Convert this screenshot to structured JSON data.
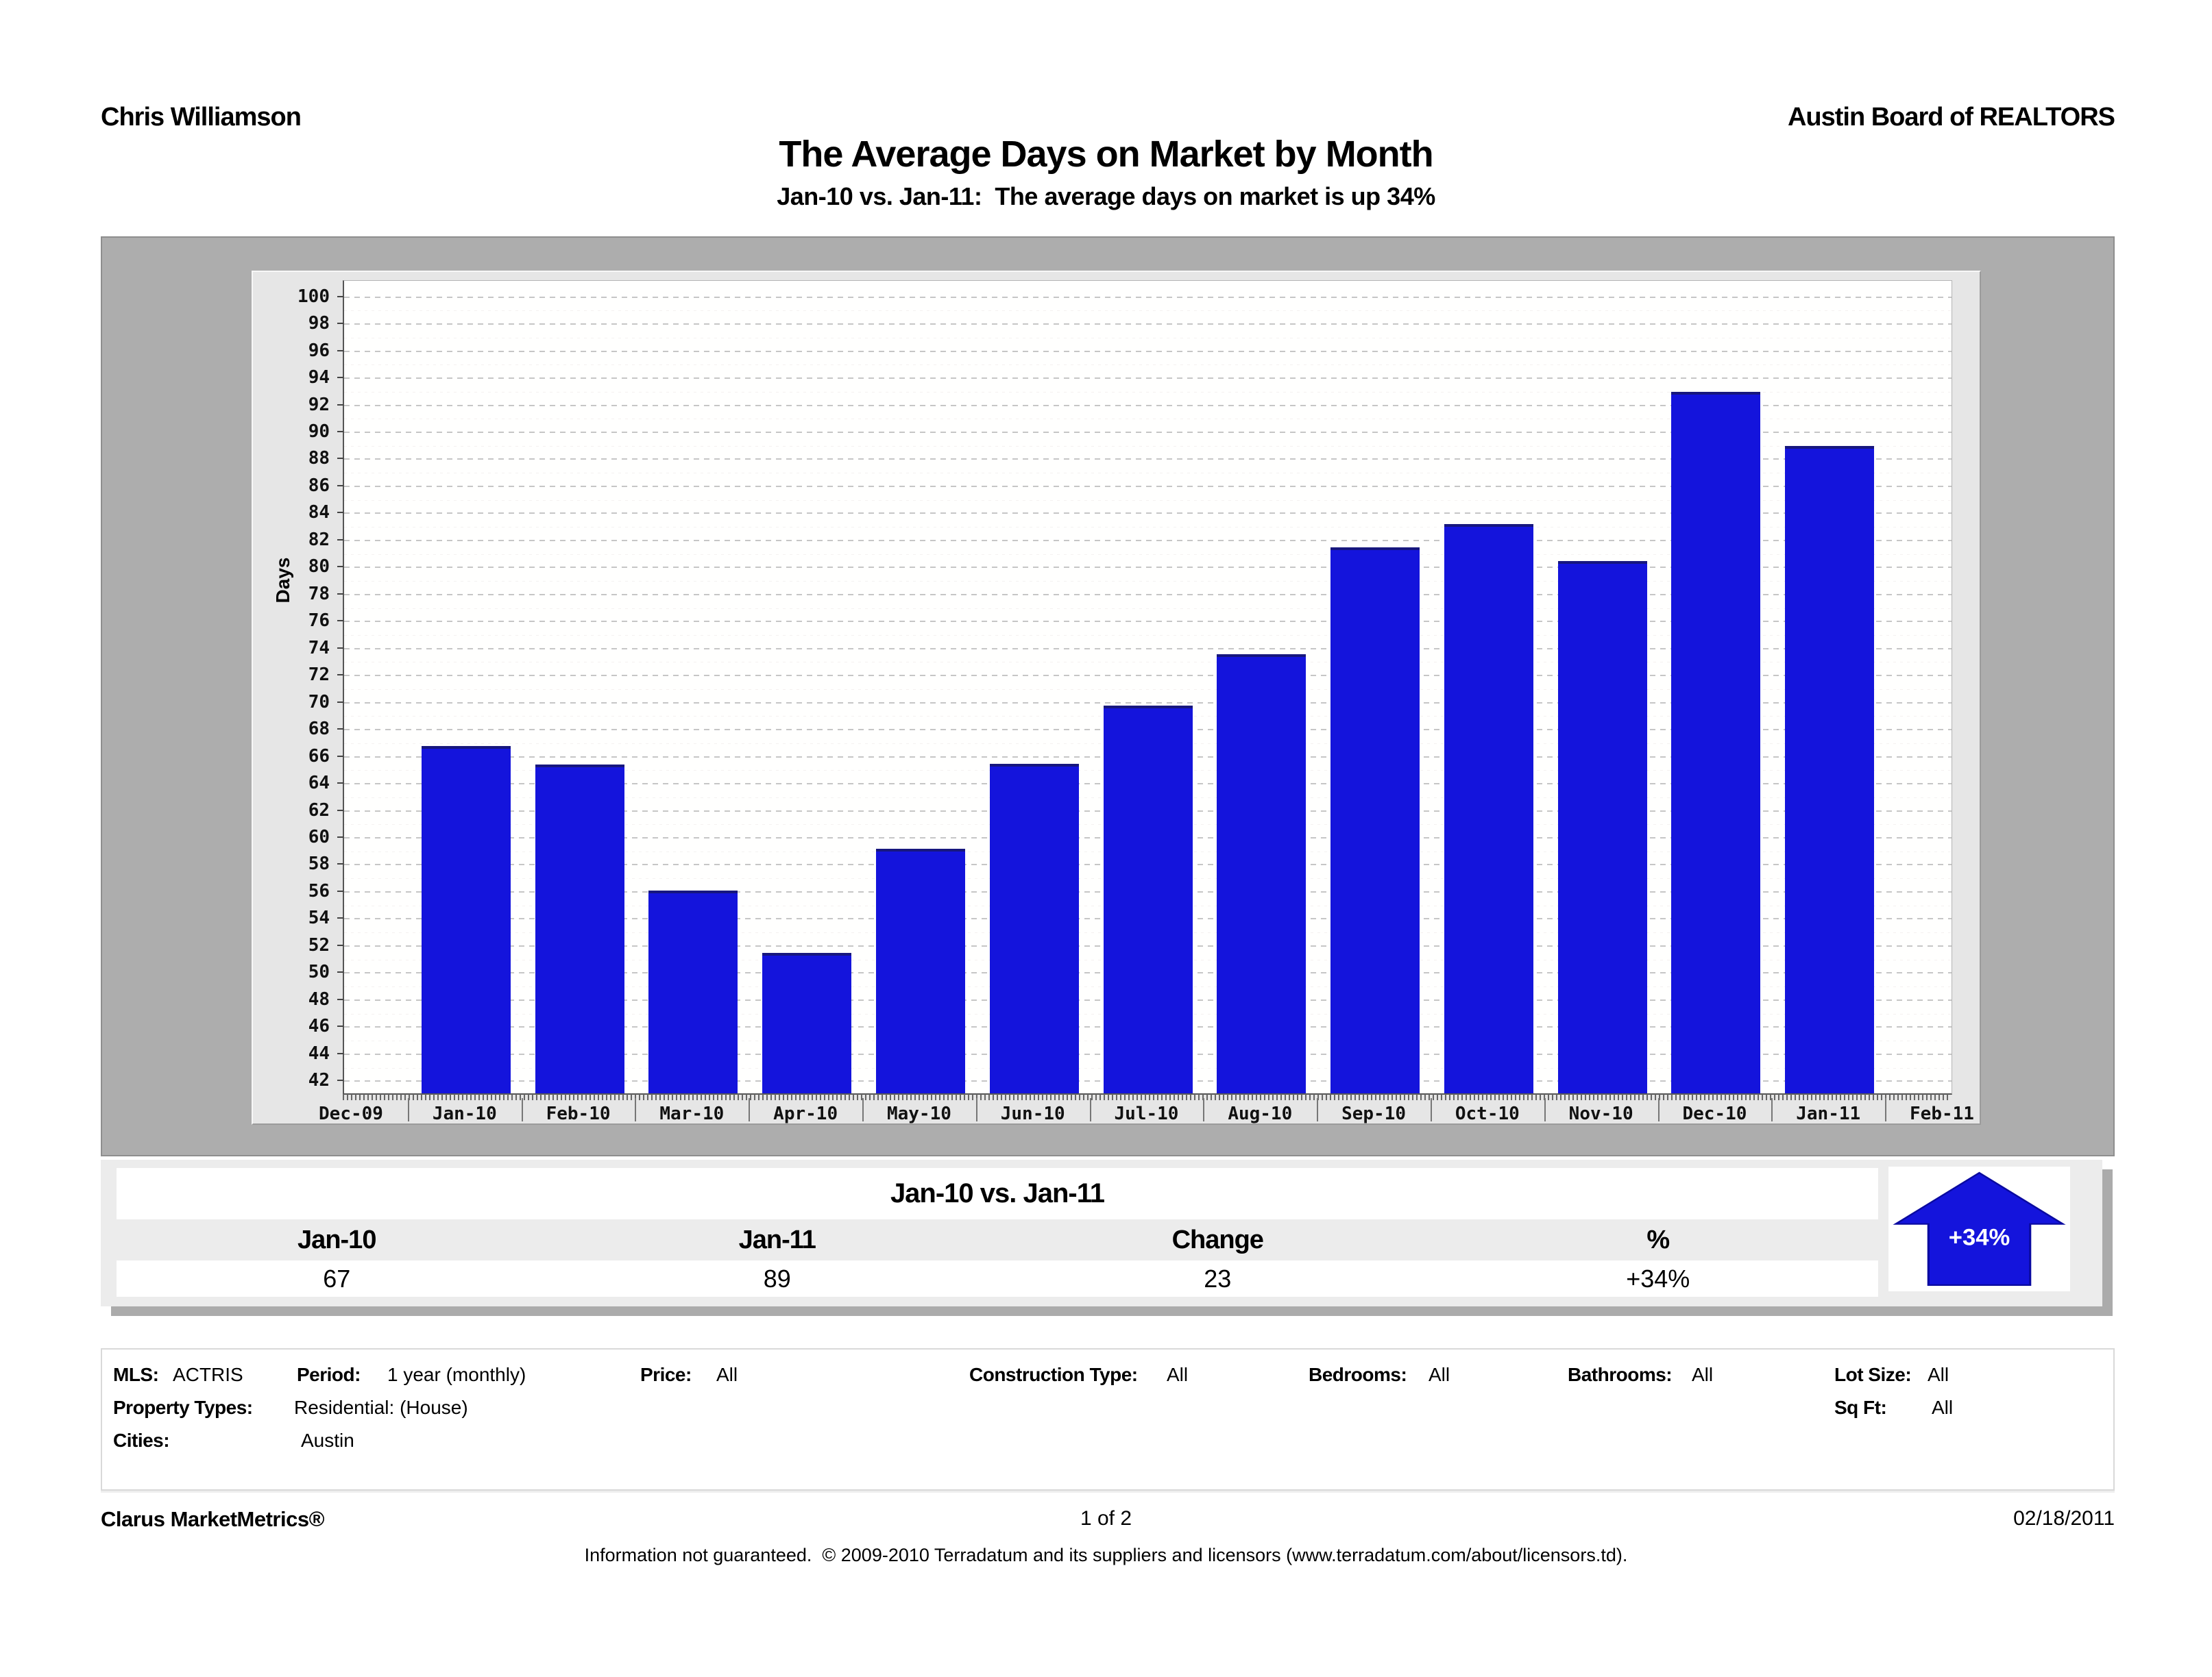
{
  "header": {
    "left": "Chris Williamson",
    "right": "Austin Board of REALTORS"
  },
  "title": "The Average Days on Market by Month",
  "subtitle": "Jan-10 vs. Jan-11:  The average days on market is up 34%",
  "chart_data": {
    "type": "bar",
    "title": "The Average Days on Market by Month",
    "xlabel": "",
    "ylabel": "Days",
    "categories": [
      "Jan-10",
      "Feb-10",
      "Mar-10",
      "Apr-10",
      "May-10",
      "Jun-10",
      "Jul-10",
      "Aug-10",
      "Sep-10",
      "Oct-10",
      "Nov-10",
      "Dec-10",
      "Jan-11"
    ],
    "values": [
      66.8,
      65.4,
      56.1,
      51.5,
      59.2,
      65.5,
      69.8,
      73.6,
      81.5,
      83.2,
      80.5,
      93,
      89
    ],
    "x_axis_labels": [
      "Dec-09",
      "Jan-10",
      "Feb-10",
      "Mar-10",
      "Apr-10",
      "May-10",
      "Jun-10",
      "Jul-10",
      "Aug-10",
      "Sep-10",
      "Oct-10",
      "Nov-10",
      "Dec-10",
      "Jan-11",
      "Feb-11"
    ],
    "ylim": [
      41.1,
      101.2
    ],
    "yticks": {
      "min": 42,
      "max": 100,
      "step": 2
    },
    "grid": true,
    "legend_position": "none",
    "bar_color": "#1414DC"
  },
  "summary": {
    "title": "Jan-10 vs. Jan-11",
    "columns": [
      "Jan-10",
      "Jan-11",
      "Change",
      "%"
    ],
    "values": [
      "67",
      "89",
      "23",
      "+34%"
    ],
    "arrow_badge": {
      "label": "+34%",
      "direction": "up",
      "color": "#1414DC"
    }
  },
  "filters": {
    "mls_label": "MLS:",
    "mls": "ACTRIS",
    "period_label": "Period:",
    "period": "1 year (monthly)",
    "price_label": "Price:",
    "price": "All",
    "construction_label": "Construction Type:",
    "construction": "All",
    "bedrooms_label": "Bedrooms:",
    "bedrooms": "All",
    "bathrooms_label": "Bathrooms:",
    "bathrooms": "All",
    "lot_label": "Lot Size:",
    "lot": "All",
    "property_label": "Property Types:",
    "property": "Residential: (House)",
    "sqft_label": "Sq Ft:",
    "sqft": "All",
    "cities_label": "Cities:",
    "cities": "Austin"
  },
  "footer": {
    "brand": "Clarus MarketMetrics®",
    "page": "1 of 2",
    "date": "02/18/2011",
    "disclaimer": "Information not guaranteed.  © 2009-2010 Terradatum and its suppliers and licensors (www.terradatum.com/about/licensors.td)."
  }
}
